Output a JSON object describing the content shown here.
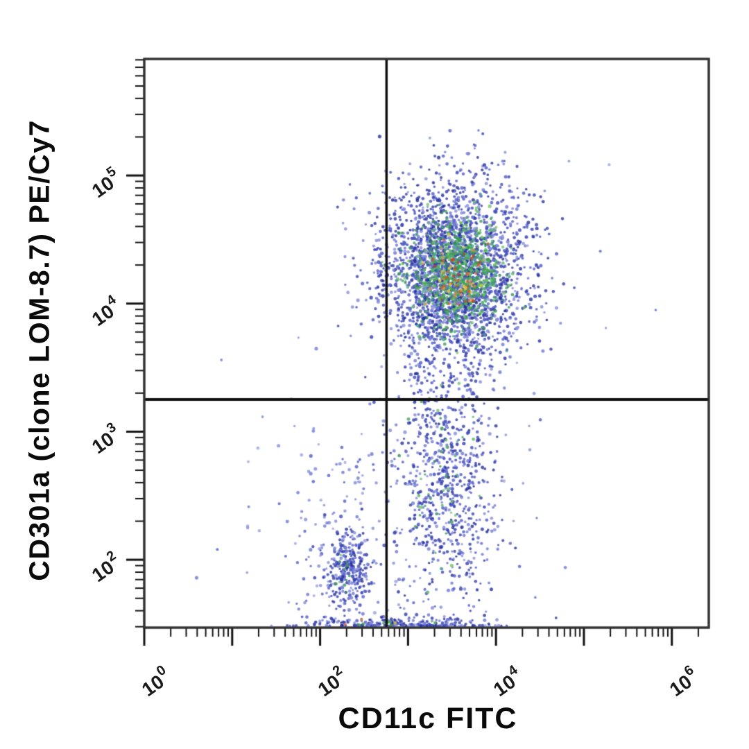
{
  "chart_data": {
    "type": "scatter",
    "subtype": "flow-cytometry-pseudocolor-dot-plot",
    "title": "",
    "xlabel": "CD11c FITC",
    "ylabel": "CD301a (clone LOM-8.7) PE/Cy7",
    "x_scale": "log10",
    "y_scale": "log10",
    "xlim_log10": [
      0,
      6.42
    ],
    "ylim_log10": [
      1.47,
      5.91
    ],
    "grid": false,
    "legend": false,
    "x_axis": {
      "ticks": [
        {
          "log10": 0,
          "base": "10",
          "exp": "0"
        },
        {
          "log10": 1
        },
        {
          "log10": 2,
          "base": "10",
          "exp": "2"
        },
        {
          "log10": 3
        },
        {
          "log10": 4,
          "base": "10",
          "exp": "4"
        },
        {
          "log10": 5
        },
        {
          "log10": 6,
          "base": "10",
          "exp": "6"
        }
      ]
    },
    "y_axis": {
      "ticks": [
        {
          "log10": 2,
          "base": "10",
          "exp": "2"
        },
        {
          "log10": 3,
          "base": "10",
          "exp": "3"
        },
        {
          "log10": 4,
          "base": "10",
          "exp": "4"
        },
        {
          "log10": 5,
          "base": "10",
          "exp": "5"
        }
      ]
    },
    "quadrant_gate": {
      "x_log10": 2.755,
      "x_value": 569,
      "y_log10": 3.252,
      "y_value": 1787
    },
    "populations": [
      {
        "name": "cd11c-pos-cd301a-pos-main-cluster",
        "n": 2600,
        "center_log10": [
          3.52,
          4.25
        ],
        "sigma_log10": [
          0.42,
          0.36
        ],
        "color_layer": "blue"
      },
      {
        "name": "main-cluster-mid-density",
        "n": 700,
        "center_log10": [
          3.55,
          4.22
        ],
        "sigma_log10": [
          0.26,
          0.22
        ],
        "color_layer": "green"
      },
      {
        "name": "main-cluster-core-density",
        "n": 80,
        "center_log10": [
          3.56,
          4.21
        ],
        "sigma_log10": [
          0.15,
          0.13
        ],
        "color_layer": "warm"
      },
      {
        "name": "cd11c-pos-cd301a-neg-tail",
        "n": 760,
        "center_log10": [
          3.43,
          2.6
        ],
        "sigma_log10": [
          0.3,
          0.55
        ],
        "color_layer": "blue"
      },
      {
        "name": "tail-mid-density",
        "n": 45,
        "center_log10": [
          3.43,
          2.62
        ],
        "sigma_log10": [
          0.18,
          0.33
        ],
        "color_layer": "green"
      },
      {
        "name": "double-negative-cluster",
        "n": 300,
        "center_log10": [
          2.3,
          1.94
        ],
        "sigma_log10": [
          0.13,
          0.15
        ],
        "color_layer": "blue"
      },
      {
        "name": "double-negative-mid-density",
        "n": 12,
        "center_log10": [
          2.3,
          1.94
        ],
        "sigma_log10": [
          0.07,
          0.08
        ],
        "color_layer": "green"
      },
      {
        "name": "sparse-lower-left",
        "n": 130,
        "center_log10": [
          2.25,
          2.25
        ],
        "sigma_log10": [
          0.55,
          0.45
        ],
        "color_layer": "blue-sparse"
      },
      {
        "name": "baseline-pile-on-x-axis",
        "n": 230,
        "center_log10": [
          2.85,
          1.5
        ],
        "sigma_log10": [
          0.5,
          0.03
        ],
        "color_layer": "blue"
      },
      {
        "name": "baseline-pile-mid-density",
        "n": 8,
        "center_log10": [
          2.7,
          1.5
        ],
        "sigma_log10": [
          0.45,
          0.02
        ],
        "color_layer": "green"
      },
      {
        "name": "baseline-pile-core",
        "n": 3,
        "center_log10": [
          2.8,
          1.5
        ],
        "sigma_log10": [
          0.4,
          0.02
        ],
        "color_layer": "warm"
      },
      {
        "name": "scattered-singles",
        "n": 70,
        "center_log10": [
          3.3,
          3.0
        ],
        "sigma_log10": [
          0.9,
          0.9
        ],
        "color_layer": "blue-sparse"
      }
    ],
    "palettes": {
      "blue": [
        "#3944b4",
        "#4e59c6",
        "#2b37a6",
        "#6a74d2",
        "#202c96",
        "#8289d8"
      ],
      "green": [
        "#3da04b",
        "#54b65a",
        "#2f9055",
        "#6fc468",
        "#47ab7e"
      ],
      "warm": [
        "#e2882e",
        "#d8572e",
        "#e7c83e",
        "#df9c66",
        "#cf3b2a"
      ],
      "blue-sparse": [
        "#6a74d0",
        "#8289d8",
        "#4e59c6",
        "#9aa0e0"
      ]
    },
    "colors": {
      "background": "#ffffff",
      "frame": "#333333",
      "ticks": "#111111",
      "gate": "#111111",
      "text": "#0a0a0a"
    }
  }
}
